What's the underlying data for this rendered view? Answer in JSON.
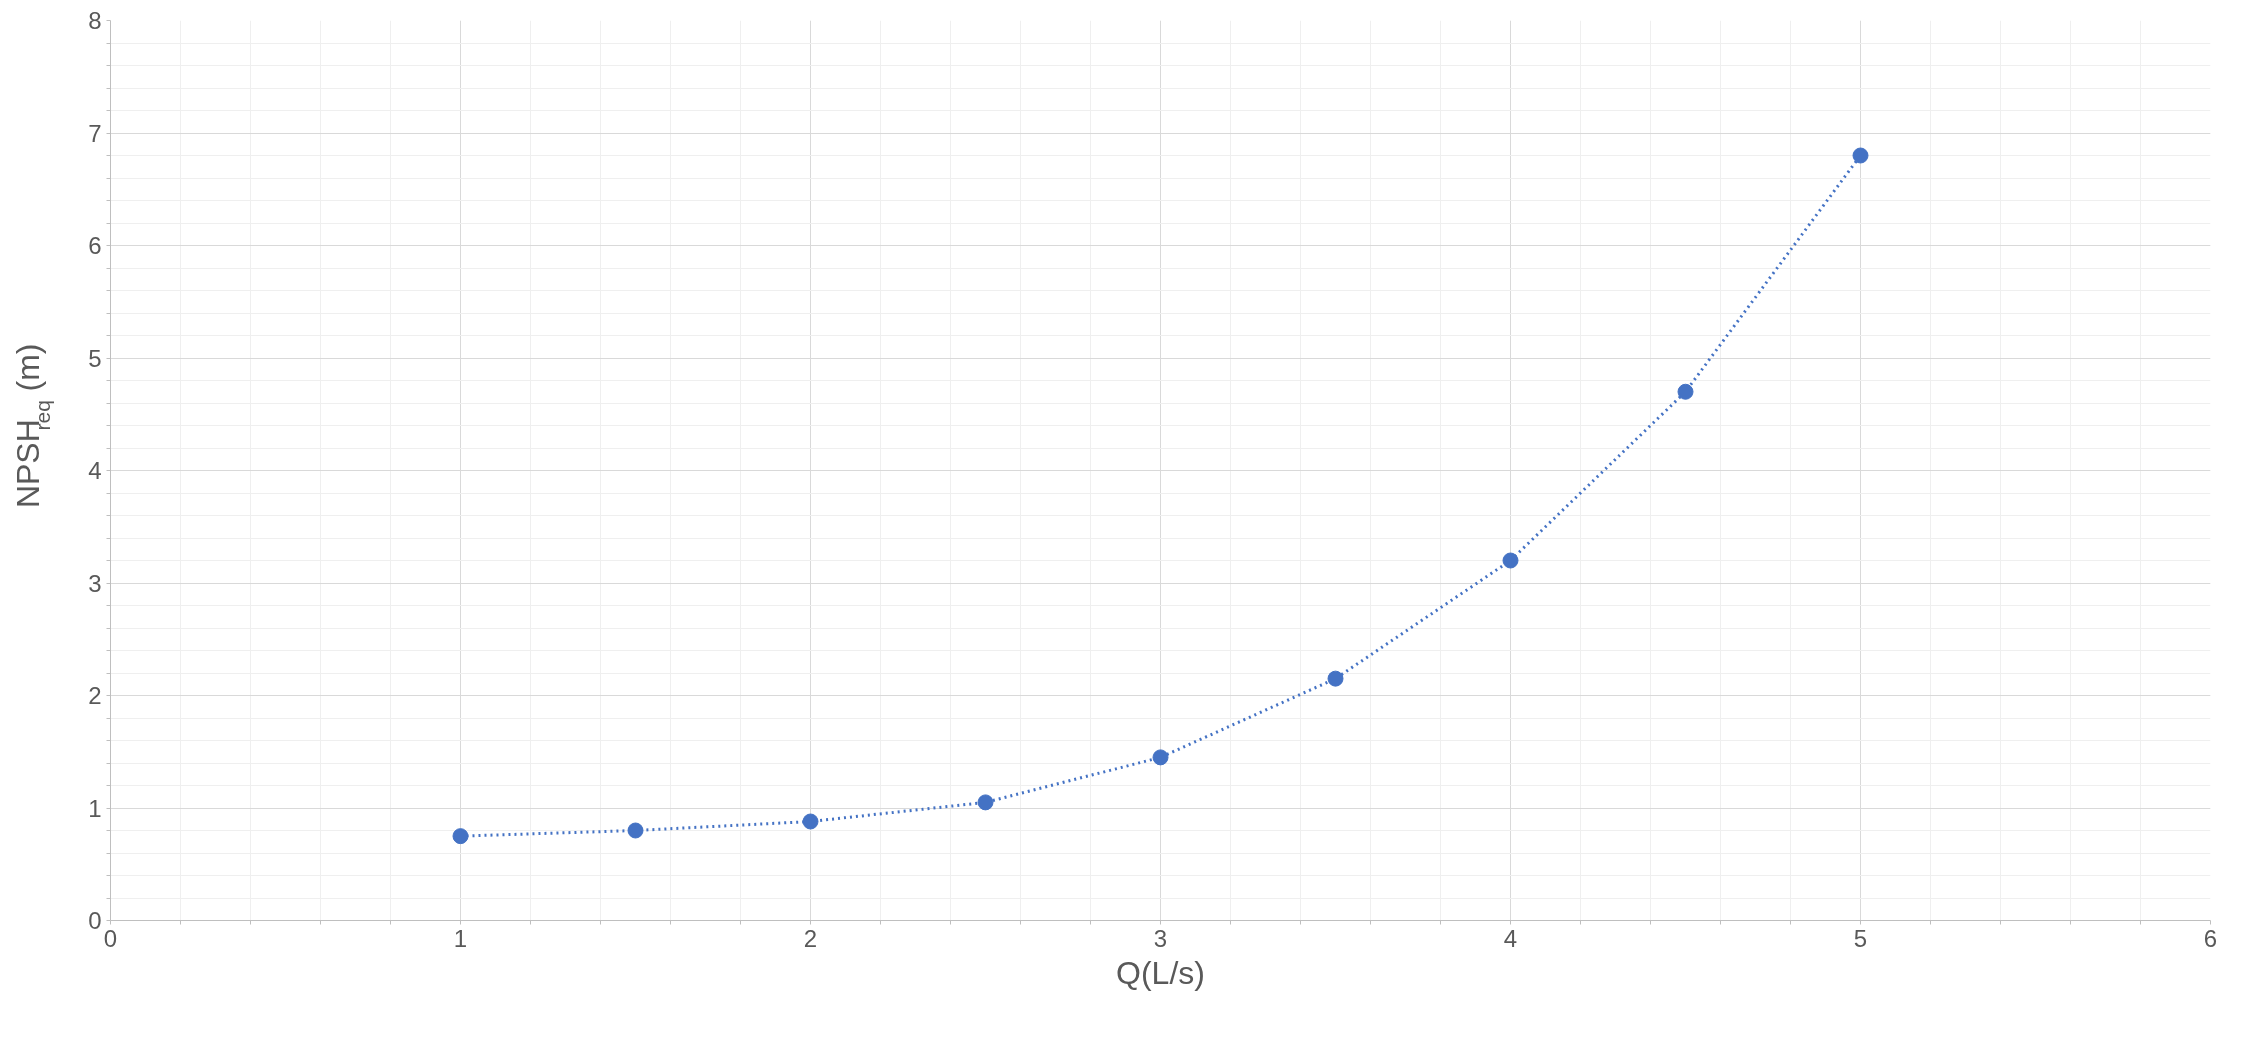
{
  "chart_data": {
    "type": "line",
    "xlabel": "Q(L/s)",
    "ylabel": "NPSH$_{req}$ (m)",
    "x": [
      1,
      1.5,
      2,
      2.5,
      3,
      3.5,
      4,
      4.5,
      5
    ],
    "series": [
      {
        "color": "#4472c4",
        "values": [
          0.75,
          0.8,
          0.88,
          1.05,
          1.45,
          2.15,
          3.2,
          4.7,
          6.8
        ]
      }
    ],
    "xlim": [
      0,
      6
    ],
    "ylim": [
      0,
      8
    ],
    "xticks": [
      0,
      1,
      2,
      3,
      4,
      5,
      6
    ],
    "yticks": [
      0,
      1,
      2,
      3,
      4,
      5,
      6,
      7,
      8
    ],
    "grid": true,
    "marker": "circle",
    "line_style": "dotted"
  }
}
